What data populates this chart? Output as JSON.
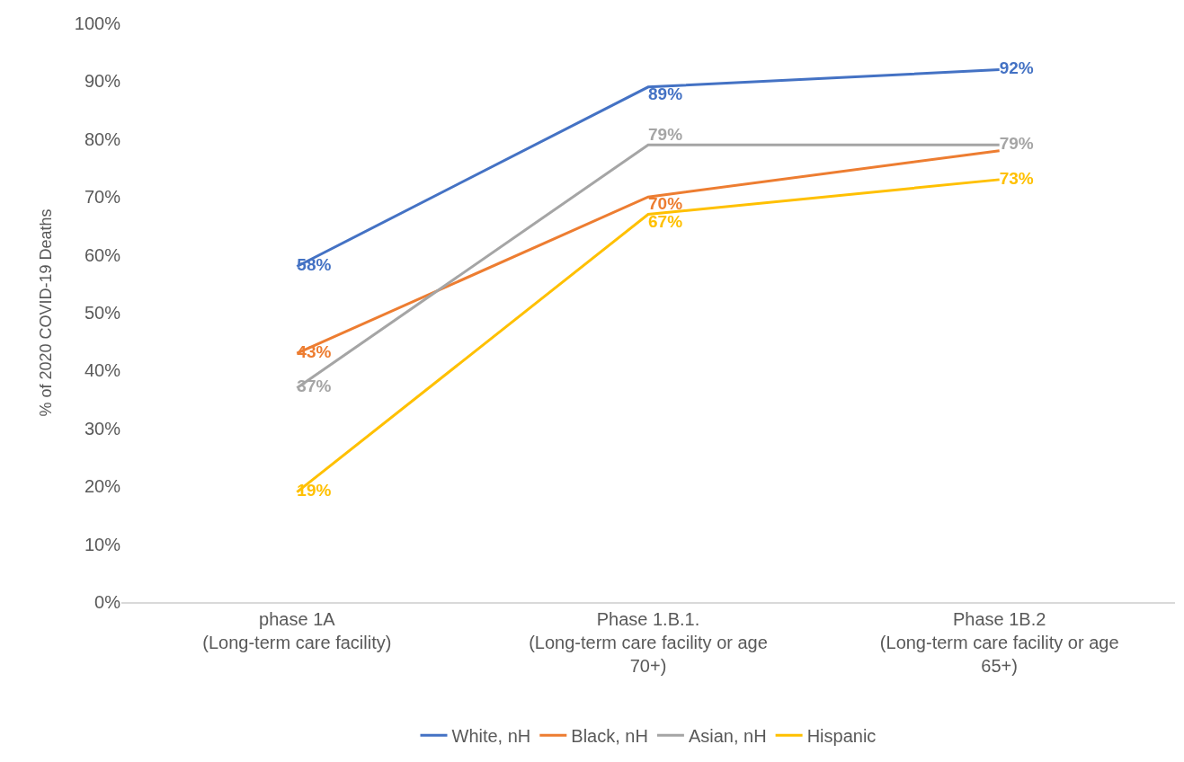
{
  "chart_data": {
    "type": "line",
    "ylabel": "% of 2020 COVID-19 Deaths",
    "categories": [
      "phase 1A\n(Long-term care facility)",
      "Phase 1.B.1.\n(Long-term care facility or age\n70+)",
      "Phase 1B.2\n(Long-term care facility or age\n65+)"
    ],
    "series": [
      {
        "name": "White, nH",
        "color": "#4472c4",
        "values": [
          58,
          89,
          92
        ],
        "value_labels": [
          "58%",
          "89%",
          "92%"
        ]
      },
      {
        "name": "Black, nH",
        "color": "#ed7d31",
        "values": [
          43,
          70,
          78
        ],
        "value_labels": [
          "43%",
          "70%",
          null
        ]
      },
      {
        "name": "Asian, nH",
        "color": "#a5a5a5",
        "values": [
          37,
          79,
          79
        ],
        "value_labels": [
          "37%",
          "79%",
          "79%"
        ]
      },
      {
        "name": "Hispanic",
        "color": "#ffc000",
        "values": [
          19,
          67,
          73
        ],
        "value_labels": [
          "19%",
          "67%",
          "73%"
        ]
      }
    ],
    "ylim": [
      0,
      100
    ],
    "yticks": [
      {
        "value": 0,
        "label": "0%"
      },
      {
        "value": 10,
        "label": "10%"
      },
      {
        "value": 20,
        "label": "20%"
      },
      {
        "value": 30,
        "label": "30%"
      },
      {
        "value": 40,
        "label": "40%"
      },
      {
        "value": 50,
        "label": "50%"
      },
      {
        "value": 60,
        "label": "60%"
      },
      {
        "value": 70,
        "label": "70%"
      },
      {
        "value": 80,
        "label": "80%"
      },
      {
        "value": 90,
        "label": "90%"
      },
      {
        "value": 100,
        "label": "100%"
      }
    ],
    "grid": false,
    "legend": "bottom",
    "marker": "none",
    "line_style": "solid"
  }
}
